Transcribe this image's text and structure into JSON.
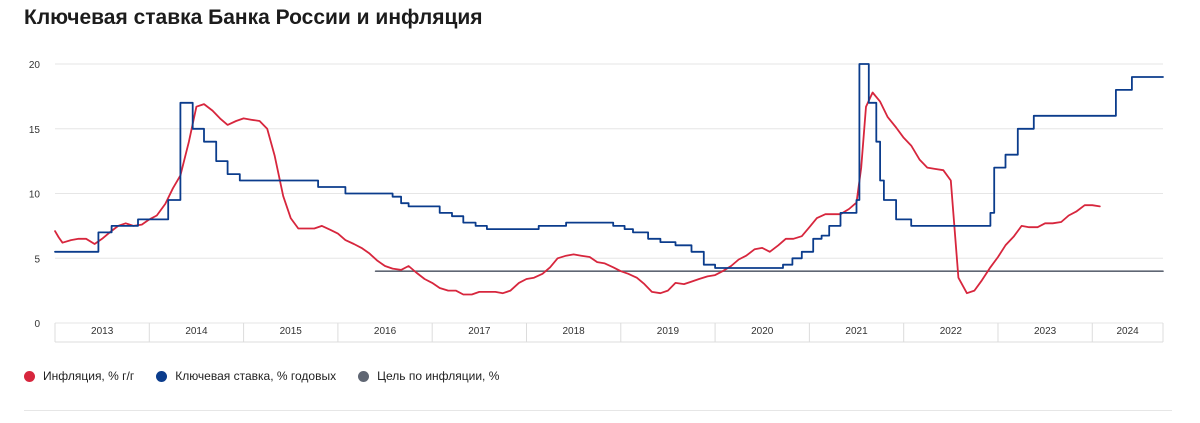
{
  "page": {
    "title": "Ключевая ставка Банка России и инфляция"
  },
  "colors": {
    "inflation": "#d7263d",
    "key_rate": "#0b3c8c",
    "target": "#5f6673",
    "grid": "#e6e6e6"
  },
  "chart_data": {
    "type": "line",
    "title": "Ключевая ставка Банка России и инфляция",
    "xlabel": "",
    "ylabel": "",
    "xlim": [
      2013.0,
      2024.75
    ],
    "ylim": [
      0,
      20
    ],
    "yticks": [
      0,
      5,
      10,
      15,
      20
    ],
    "xtick_labels": [
      "2013",
      "2014",
      "2015",
      "2016",
      "2017",
      "2018",
      "2019",
      "2020",
      "2021",
      "2022",
      "2023",
      "2024"
    ],
    "grid": "horizontal",
    "legend_position": "bottom-left",
    "series": [
      {
        "name": "Инфляция, % г/г",
        "key": "inflation",
        "step": false,
        "points": [
          [
            2013.0,
            7.1
          ],
          [
            2013.04,
            6.6
          ],
          [
            2013.08,
            6.2
          ],
          [
            2013.17,
            6.4
          ],
          [
            2013.25,
            6.5
          ],
          [
            2013.33,
            6.5
          ],
          [
            2013.42,
            6.1
          ],
          [
            2013.5,
            6.5
          ],
          [
            2013.58,
            7.0
          ],
          [
            2013.67,
            7.5
          ],
          [
            2013.75,
            7.7
          ],
          [
            2013.83,
            7.5
          ],
          [
            2013.92,
            7.6
          ],
          [
            2014.0,
            8.0
          ],
          [
            2014.08,
            8.3
          ],
          [
            2014.17,
            9.2
          ],
          [
            2014.25,
            10.4
          ],
          [
            2014.33,
            11.4
          ],
          [
            2014.42,
            14.0
          ],
          [
            2014.5,
            16.7
          ],
          [
            2014.58,
            16.9
          ],
          [
            2014.67,
            16.4
          ],
          [
            2014.75,
            15.8
          ],
          [
            2014.83,
            15.3
          ],
          [
            2014.92,
            15.6
          ],
          [
            2015.0,
            15.8
          ],
          [
            2015.08,
            15.7
          ],
          [
            2015.17,
            15.6
          ],
          [
            2015.25,
            15.0
          ],
          [
            2015.33,
            12.9
          ],
          [
            2015.42,
            9.8
          ],
          [
            2015.5,
            8.1
          ],
          [
            2015.58,
            7.3
          ],
          [
            2015.67,
            7.3
          ],
          [
            2015.75,
            7.3
          ],
          [
            2015.83,
            7.5
          ],
          [
            2015.92,
            7.2
          ],
          [
            2016.0,
            6.9
          ],
          [
            2016.08,
            6.4
          ],
          [
            2016.17,
            6.1
          ],
          [
            2016.25,
            5.8
          ],
          [
            2016.33,
            5.4
          ],
          [
            2016.42,
            4.8
          ],
          [
            2016.5,
            4.4
          ],
          [
            2016.58,
            4.2
          ],
          [
            2016.67,
            4.1
          ],
          [
            2016.75,
            4.4
          ],
          [
            2016.83,
            3.9
          ],
          [
            2016.92,
            3.4
          ],
          [
            2017.0,
            3.1
          ],
          [
            2017.08,
            2.7
          ],
          [
            2017.17,
            2.5
          ],
          [
            2017.25,
            2.5
          ],
          [
            2017.33,
            2.2
          ],
          [
            2017.42,
            2.2
          ],
          [
            2017.5,
            2.4
          ],
          [
            2017.58,
            2.4
          ],
          [
            2017.67,
            2.4
          ],
          [
            2017.75,
            2.3
          ],
          [
            2017.83,
            2.5
          ],
          [
            2017.92,
            3.1
          ],
          [
            2018.0,
            3.4
          ],
          [
            2018.08,
            3.5
          ],
          [
            2018.17,
            3.8
          ],
          [
            2018.25,
            4.3
          ],
          [
            2018.33,
            5.0
          ],
          [
            2018.42,
            5.2
          ],
          [
            2018.5,
            5.3
          ],
          [
            2018.58,
            5.2
          ],
          [
            2018.67,
            5.1
          ],
          [
            2018.75,
            4.7
          ],
          [
            2018.83,
            4.6
          ],
          [
            2018.92,
            4.3
          ],
          [
            2019.0,
            4.0
          ],
          [
            2019.08,
            3.8
          ],
          [
            2019.17,
            3.5
          ],
          [
            2019.25,
            3.0
          ],
          [
            2019.33,
            2.4
          ],
          [
            2019.42,
            2.3
          ],
          [
            2019.5,
            2.5
          ],
          [
            2019.58,
            3.1
          ],
          [
            2019.67,
            3.0
          ],
          [
            2019.75,
            3.2
          ],
          [
            2019.83,
            3.4
          ],
          [
            2019.92,
            3.6
          ],
          [
            2020.0,
            3.7
          ],
          [
            2020.08,
            4.0
          ],
          [
            2020.17,
            4.4
          ],
          [
            2020.25,
            4.9
          ],
          [
            2020.33,
            5.2
          ],
          [
            2020.42,
            5.7
          ],
          [
            2020.5,
            5.8
          ],
          [
            2020.58,
            5.5
          ],
          [
            2020.67,
            6.0
          ],
          [
            2020.75,
            6.5
          ],
          [
            2020.83,
            6.5
          ],
          [
            2020.92,
            6.7
          ],
          [
            2021.0,
            7.4
          ],
          [
            2021.08,
            8.1
          ],
          [
            2021.17,
            8.4
          ],
          [
            2021.25,
            8.4
          ],
          [
            2021.33,
            8.4
          ],
          [
            2021.42,
            8.8
          ],
          [
            2021.5,
            9.3
          ],
          [
            2021.55,
            12.0
          ],
          [
            2021.6,
            16.7
          ],
          [
            2021.67,
            17.8
          ],
          [
            2021.75,
            17.1
          ],
          [
            2021.83,
            15.9
          ],
          [
            2021.92,
            15.1
          ],
          [
            2022.0,
            14.3
          ],
          [
            2022.08,
            13.7
          ],
          [
            2022.17,
            12.6
          ],
          [
            2022.25,
            12.0
          ],
          [
            2022.33,
            11.9
          ],
          [
            2022.42,
            11.8
          ],
          [
            2022.5,
            11.0
          ],
          [
            2022.58,
            3.5
          ],
          [
            2022.67,
            2.3
          ],
          [
            2022.75,
            2.5
          ],
          [
            2022.83,
            3.3
          ],
          [
            2022.92,
            4.3
          ],
          [
            2023.0,
            5.1
          ],
          [
            2023.08,
            6.0
          ],
          [
            2023.17,
            6.7
          ],
          [
            2023.25,
            7.5
          ],
          [
            2023.33,
            7.4
          ],
          [
            2023.42,
            7.4
          ],
          [
            2023.5,
            7.7
          ],
          [
            2023.58,
            7.7
          ],
          [
            2023.67,
            7.8
          ],
          [
            2023.75,
            8.3
          ],
          [
            2023.83,
            8.6
          ],
          [
            2023.92,
            9.1
          ],
          [
            2024.0,
            9.1
          ],
          [
            2024.08,
            9.0
          ]
        ]
      },
      {
        "name": "Ключевая ставка, % годовых",
        "key": "key_rate",
        "step": true,
        "points": [
          [
            2013.0,
            5.5
          ],
          [
            2013.46,
            7.0
          ],
          [
            2013.6,
            7.5
          ],
          [
            2013.88,
            8.0
          ],
          [
            2014.2,
            9.5
          ],
          [
            2014.33,
            17.0
          ],
          [
            2014.46,
            15.0
          ],
          [
            2014.58,
            14.0
          ],
          [
            2014.71,
            12.5
          ],
          [
            2014.83,
            11.5
          ],
          [
            2014.96,
            11.0
          ],
          [
            2015.79,
            10.5
          ],
          [
            2016.08,
            10.0
          ],
          [
            2016.58,
            9.75
          ],
          [
            2016.67,
            9.25
          ],
          [
            2016.75,
            9.0
          ],
          [
            2017.08,
            8.5
          ],
          [
            2017.21,
            8.25
          ],
          [
            2017.33,
            7.75
          ],
          [
            2017.46,
            7.5
          ],
          [
            2017.58,
            7.25
          ],
          [
            2018.13,
            7.5
          ],
          [
            2018.42,
            7.75
          ],
          [
            2018.92,
            7.5
          ],
          [
            2019.04,
            7.25
          ],
          [
            2019.13,
            7.0
          ],
          [
            2019.29,
            6.5
          ],
          [
            2019.42,
            6.25
          ],
          [
            2019.58,
            6.0
          ],
          [
            2019.75,
            5.5
          ],
          [
            2019.88,
            4.5
          ],
          [
            2020.0,
            4.25
          ],
          [
            2020.72,
            4.5
          ],
          [
            2020.82,
            5.0
          ],
          [
            2020.92,
            5.5
          ],
          [
            2021.04,
            6.5
          ],
          [
            2021.13,
            6.75
          ],
          [
            2021.21,
            7.5
          ],
          [
            2021.33,
            8.5
          ],
          [
            2021.5,
            9.5
          ],
          [
            2021.53,
            20.0
          ],
          [
            2021.63,
            17.0
          ],
          [
            2021.71,
            14.0
          ],
          [
            2021.75,
            11.0
          ],
          [
            2021.79,
            9.5
          ],
          [
            2021.92,
            8.0
          ],
          [
            2022.08,
            7.5
          ],
          [
            2022.92,
            8.5
          ],
          [
            2022.96,
            12.0
          ],
          [
            2023.08,
            13.0
          ],
          [
            2023.21,
            15.0
          ],
          [
            2023.38,
            16.0
          ],
          [
            2024.25,
            18.0
          ],
          [
            2024.42,
            19.0
          ],
          [
            2024.75,
            19.0
          ]
        ]
      },
      {
        "name": "Цель по инфляции, %",
        "key": "target",
        "step": false,
        "points": [
          [
            2016.4,
            4.0
          ],
          [
            2024.75,
            4.0
          ]
        ]
      }
    ]
  },
  "legend": [
    {
      "label": "Инфляция, % г/г",
      "color_key": "inflation"
    },
    {
      "label": "Ключевая ставка, % годовых",
      "color_key": "key_rate"
    },
    {
      "label": "Цель по инфляции, %",
      "color_key": "target"
    }
  ]
}
